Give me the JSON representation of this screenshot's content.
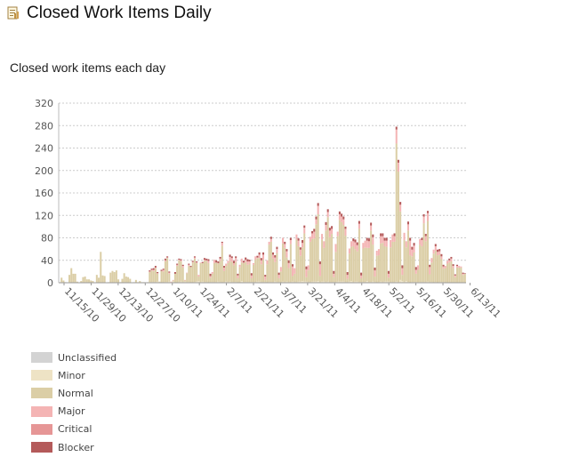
{
  "header": {
    "title": "Closed Work Items Daily",
    "icon": "report-document-icon"
  },
  "chart_data": {
    "type": "bar",
    "stacked": true,
    "title": "Closed work items each day",
    "xlabel": "",
    "ylabel": "",
    "ylim": [
      0,
      320
    ],
    "yticks": [
      0,
      40,
      80,
      120,
      160,
      200,
      240,
      280,
      320
    ],
    "x_start": "11/15/10",
    "x_end": "6/13/11",
    "xticks": [
      "11/15/10",
      "11/29/10",
      "12/13/10",
      "12/27/10",
      "1/10/11",
      "1/24/11",
      "2/7/11",
      "2/21/11",
      "3/7/11",
      "3/21/11",
      "4/4/11",
      "4/18/11",
      "5/2/11",
      "5/16/11",
      "5/30/11",
      "6/13/11"
    ],
    "grid": true,
    "legend_position": "bottom-left",
    "series": [
      {
        "name": "Unclassified",
        "color": "#d3d3d3",
        "values": [
          0,
          0,
          0,
          0,
          0,
          0,
          0,
          0,
          0,
          0,
          0,
          0,
          0,
          0,
          0,
          0,
          0,
          0,
          0,
          0,
          0,
          0,
          0,
          0,
          0,
          0,
          0,
          0,
          0,
          0,
          0,
          0,
          0,
          0,
          0,
          0,
          0,
          0,
          0,
          0,
          0,
          0,
          0,
          0,
          0,
          0,
          0,
          0,
          0,
          0,
          0,
          0,
          0,
          0,
          0,
          0,
          0,
          0,
          0,
          0,
          0,
          0,
          0,
          0,
          0,
          0,
          0,
          0,
          0,
          0,
          0,
          0,
          0,
          0,
          0,
          0,
          0,
          0,
          0,
          0,
          0,
          0,
          0,
          0,
          0,
          0,
          0,
          0,
          0,
          0,
          0,
          0,
          0,
          0,
          0,
          0,
          0,
          0,
          0,
          0,
          0,
          0,
          0,
          0,
          0,
          0,
          0,
          0,
          0,
          0,
          0,
          0,
          0,
          0,
          0,
          0,
          0,
          0,
          0,
          0,
          0,
          0,
          0,
          0,
          0,
          0,
          0,
          0,
          0,
          0,
          0,
          0,
          0,
          0,
          0,
          0,
          0,
          0,
          0,
          0,
          0,
          0,
          0,
          0,
          0,
          0,
          0,
          0,
          0,
          0,
          0,
          0,
          0,
          0,
          0,
          0,
          0,
          0,
          0,
          0,
          0,
          0,
          0,
          0,
          0,
          0,
          0,
          0,
          0,
          0,
          0,
          0,
          0,
          0,
          0,
          0,
          0,
          0,
          0,
          0,
          0,
          0,
          0,
          0,
          0,
          0,
          0,
          0,
          0,
          0,
          0,
          0,
          0,
          0,
          0,
          0,
          0,
          0,
          0,
          0,
          0,
          0,
          0,
          0,
          0,
          0,
          0,
          0
        ]
      },
      {
        "name": "Minor",
        "color": "#eee3c5",
        "values": [
          0,
          1,
          0,
          0,
          0,
          1,
          0,
          0,
          0,
          0,
          0,
          0,
          0,
          0,
          0,
          0,
          0,
          0,
          0,
          0,
          0,
          0,
          0,
          0,
          0,
          0,
          0,
          0,
          0,
          0,
          0,
          0,
          0,
          0,
          0,
          0,
          0,
          0,
          0,
          0,
          0,
          0,
          0,
          0,
          0,
          0,
          1,
          1,
          1,
          1,
          2,
          1,
          0,
          0,
          1,
          1,
          2,
          1,
          2,
          0,
          0,
          1,
          2,
          1,
          2,
          1,
          1,
          0,
          0,
          1,
          2,
          3,
          1,
          2,
          1,
          1,
          0,
          1,
          1,
          1,
          1,
          2,
          1,
          0,
          1,
          2,
          1,
          2,
          1,
          1,
          1,
          0,
          0,
          3,
          1,
          1,
          1,
          1,
          1,
          1,
          1,
          2,
          2,
          1,
          1,
          1,
          0,
          1,
          1,
          1,
          2,
          1,
          1,
          0,
          2,
          1,
          2,
          1,
          1,
          2,
          1,
          1,
          2,
          2,
          3,
          2,
          2,
          1,
          1,
          2,
          2,
          2,
          3,
          1,
          2,
          2,
          1,
          2,
          1,
          1,
          1,
          1,
          2,
          2,
          2,
          2,
          1,
          1,
          2,
          3,
          1,
          2,
          2,
          1,
          1,
          1,
          1,
          3,
          1,
          1,
          2,
          1,
          0,
          1,
          2,
          1,
          2,
          2,
          2,
          1,
          1,
          1,
          2,
          1,
          5,
          3,
          1,
          3,
          1,
          0,
          1,
          1,
          1,
          1,
          1,
          1,
          1,
          1,
          2,
          1,
          1,
          0,
          1,
          0,
          1,
          1,
          1,
          0,
          0,
          0,
          0,
          0,
          0,
          0,
          0,
          0,
          0,
          0
        ]
      },
      {
        "name": "Normal",
        "color": "#dbcea6",
        "values": [
          1,
          8,
          4,
          1,
          0,
          13,
          26,
          16,
          16,
          2,
          0,
          3,
          10,
          11,
          6,
          6,
          4,
          3,
          0,
          14,
          9,
          55,
          13,
          12,
          0,
          1,
          18,
          21,
          19,
          22,
          6,
          1,
          7,
          17,
          11,
          10,
          7,
          0,
          1,
          5,
          1,
          3,
          1,
          1,
          0,
          1,
          18,
          21,
          20,
          25,
          14,
          1,
          21,
          20,
          37,
          43,
          14,
          0,
          2,
          16,
          30,
          39,
          36,
          26,
          2,
          16,
          29,
          28,
          36,
          42,
          33,
          8,
          34,
          33,
          38,
          38,
          35,
          8,
          15,
          34,
          35,
          32,
          38,
          66,
          20,
          28,
          34,
          37,
          36,
          30,
          36,
          8,
          28,
          33,
          34,
          36,
          31,
          33,
          7,
          31,
          40,
          42,
          42,
          32,
          40,
          4,
          33,
          67,
          72,
          42,
          35,
          52,
          7,
          20,
          68,
          61,
          43,
          25,
          68,
          10,
          15,
          76,
          63,
          46,
          60,
          86,
          8,
          21,
          72,
          76,
          77,
          102,
          119,
          11,
          75,
          60,
          92,
          115,
          80,
          86,
          9,
          54,
          81,
          110,
          106,
          101,
          83,
          6,
          50,
          61,
          64,
          58,
          54,
          95,
          7,
          60,
          62,
          59,
          61,
          92,
          66,
          10,
          48,
          48,
          68,
          70,
          63,
          62,
          7,
          62,
          72,
          72,
          246,
          197,
          122,
          11,
          75,
          60,
          92,
          49,
          46,
          53,
          15,
          22,
          67,
          64,
          105,
          73,
          108,
          14,
          35,
          52,
          56,
          49,
          49,
          41,
          24,
          26,
          34,
          36,
          38,
          26,
          10,
          27,
          27,
          27,
          14,
          16,
          4,
          0,
          0,
          0,
          0,
          0
        ]
      },
      {
        "name": "Major",
        "color": "#f4b4b4",
        "values": [
          0,
          0,
          0,
          0,
          0,
          0,
          0,
          0,
          0,
          0,
          0,
          0,
          0,
          0,
          0,
          0,
          0,
          0,
          0,
          0,
          0,
          0,
          0,
          0,
          0,
          0,
          0,
          0,
          0,
          0,
          0,
          0,
          0,
          0,
          0,
          0,
          0,
          0,
          0,
          0,
          0,
          0,
          0,
          0,
          0,
          0,
          1,
          1,
          2,
          1,
          1,
          0,
          0,
          3,
          2,
          1,
          2,
          1,
          1,
          0,
          2,
          1,
          2,
          3,
          1,
          1,
          2,
          0,
          1,
          2,
          1,
          3,
          1,
          0,
          2,
          1,
          4,
          3,
          3,
          6,
          0,
          1,
          4,
          5,
          6,
          4,
          4,
          7,
          7,
          4,
          7,
          5,
          4,
          7,
          1,
          4,
          6,
          4,
          5,
          3,
          6,
          1,
          6,
          7,
          9,
          6,
          7,
          5,
          5,
          7,
          8,
          7,
          6,
          8,
          10,
          7,
          11,
          9,
          7,
          17,
          10,
          9,
          10,
          11,
          8,
          10,
          14,
          9,
          9,
          10,
          12,
          9,
          15,
          21,
          10,
          12,
          10,
          9,
          12,
          9,
          6,
          14,
          8,
          10,
          10,
          10,
          12,
          7,
          9,
          10,
          9,
          12,
          11,
          9,
          5,
          10,
          12,
          13,
          12,
          9,
          13,
          11,
          9,
          11,
          13,
          12,
          10,
          11,
          7,
          13,
          13,
          10,
          25,
          16,
          12,
          12,
          13,
          11,
          11,
          26,
          12,
          12,
          7,
          8,
          10,
          11,
          12,
          9,
          14,
          13,
          8,
          7,
          8,
          6,
          6,
          5,
          4,
          4,
          5,
          4,
          5,
          4,
          3,
          3,
          3,
          2,
          2,
          0,
          0,
          0,
          0,
          0
        ]
      },
      {
        "name": "Critical",
        "color": "#e69696",
        "values": [
          0,
          0,
          0,
          0,
          0,
          0,
          0,
          0,
          0,
          0,
          0,
          0,
          0,
          0,
          0,
          0,
          0,
          0,
          0,
          0,
          0,
          0,
          0,
          0,
          0,
          0,
          0,
          0,
          0,
          0,
          0,
          0,
          0,
          0,
          0,
          0,
          0,
          0,
          0,
          0,
          0,
          0,
          0,
          0,
          0,
          0,
          0,
          0,
          0,
          0,
          0,
          0,
          0,
          0,
          0,
          0,
          0,
          0,
          0,
          0,
          0,
          0,
          0,
          0,
          0,
          0,
          0,
          0,
          0,
          0,
          0,
          0,
          0,
          0,
          0,
          0,
          0,
          0,
          0,
          0,
          0,
          0,
          0,
          0,
          0,
          0,
          0,
          0,
          0,
          0,
          0,
          0,
          0,
          0,
          0,
          0,
          0,
          0,
          0,
          0,
          0,
          0,
          0,
          0,
          0,
          0,
          0,
          0,
          0,
          0,
          0,
          0,
          0,
          0,
          0,
          0,
          0,
          0,
          0,
          0,
          0,
          0,
          0,
          0,
          0,
          0,
          0,
          0,
          0,
          0,
          0,
          0,
          0,
          0,
          0,
          0,
          0,
          0,
          0,
          0,
          0,
          0,
          0,
          0,
          0,
          0,
          0,
          0,
          0,
          0,
          0,
          0,
          0,
          0,
          0,
          0,
          0,
          0,
          0,
          0,
          0,
          0,
          0,
          0,
          0,
          0,
          0,
          0,
          0,
          0,
          0,
          0,
          0,
          0,
          0,
          0,
          0,
          0,
          0,
          0,
          0,
          0,
          0,
          0,
          0,
          0,
          0,
          0,
          0,
          0,
          0,
          0,
          0,
          0,
          0,
          0,
          0,
          0,
          0,
          0,
          0,
          0,
          0,
          0,
          0,
          0,
          0,
          0
        ]
      },
      {
        "name": "Blocker",
        "color": "#b45a5a",
        "values": [
          0,
          0,
          0,
          0,
          0,
          0,
          0,
          0,
          0,
          0,
          0,
          0,
          0,
          0,
          0,
          0,
          0,
          0,
          0,
          0,
          0,
          0,
          0,
          0,
          0,
          0,
          0,
          0,
          0,
          0,
          0,
          0,
          0,
          0,
          0,
          0,
          0,
          0,
          0,
          0,
          0,
          0,
          0,
          0,
          0,
          0,
          2,
          2,
          3,
          3,
          2,
          0,
          2,
          2,
          3,
          2,
          2,
          0,
          0,
          3,
          2,
          2,
          2,
          2,
          0,
          0,
          2,
          2,
          2,
          2,
          2,
          0,
          0,
          2,
          3,
          3,
          3,
          4,
          0,
          0,
          4,
          3,
          3,
          2,
          3,
          0,
          0,
          4,
          3,
          4,
          3,
          3,
          0,
          0,
          3,
          4,
          4,
          3,
          4,
          0,
          0,
          3,
          4,
          4,
          4,
          3,
          0,
          0,
          4,
          4,
          4,
          4,
          4,
          0,
          0,
          4,
          4,
          5,
          4,
          4,
          0,
          0,
          4,
          4,
          5,
          4,
          5,
          0,
          0,
          4,
          5,
          5,
          5,
          5,
          0,
          0,
          5,
          5,
          5,
          5,
          5,
          0,
          0,
          5,
          5,
          5,
          4,
          5,
          0,
          0,
          5,
          5,
          5,
          5,
          5,
          0,
          0,
          5,
          5,
          5,
          5,
          5,
          0,
          0,
          5,
          5,
          5,
          5,
          5,
          0,
          0,
          5,
          5,
          5,
          5,
          5,
          0,
          0,
          5,
          5,
          5,
          5,
          5,
          0,
          0,
          4,
          4,
          4,
          4,
          4,
          0,
          0,
          4,
          4,
          4,
          4,
          3,
          0,
          0,
          3,
          3,
          3,
          2,
          2,
          0,
          0,
          2,
          1,
          0,
          0,
          0,
          0,
          0
        ]
      }
    ]
  }
}
